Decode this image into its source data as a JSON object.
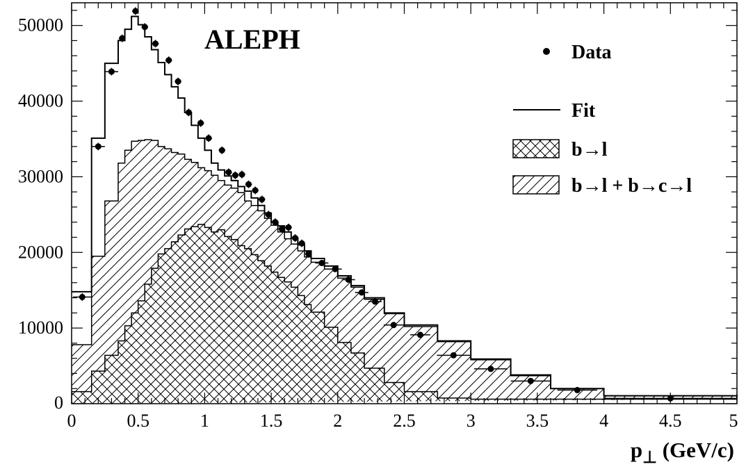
{
  "chart_data": {
    "type": "histogram",
    "experiment_label": "ALEPH",
    "xlabel": "p",
    "xlabel_subscript": "⊥",
    "xlabel_unit": " (GeV/c)",
    "xlim": [
      0,
      5
    ],
    "ylim": [
      0,
      53000
    ],
    "x_ticks": [
      "0",
      "0.5",
      "1",
      "1.5",
      "2",
      "2.5",
      "3",
      "3.5",
      "4",
      "4.5",
      "5"
    ],
    "y_ticks": [
      "0",
      "10000",
      "20000",
      "30000",
      "40000",
      "50000"
    ],
    "bin_edges": [
      0,
      0.15,
      0.25,
      0.35,
      0.4,
      0.45,
      0.5,
      0.55,
      0.6,
      0.65,
      0.7,
      0.75,
      0.8,
      0.85,
      0.9,
      0.95,
      1,
      1.05,
      1.1,
      1.15,
      1.2,
      1.25,
      1.3,
      1.35,
      1.4,
      1.45,
      1.5,
      1.55,
      1.6,
      1.65,
      1.7,
      1.75,
      1.8,
      1.9,
      2,
      2.1,
      2.2,
      2.35,
      2.5,
      2.75,
      3,
      3.3,
      3.6,
      4,
      5
    ],
    "series": [
      {
        "name": "Fit",
        "style": "line",
        "values": [
          14800,
          35100,
          45000,
          48000,
          49500,
          51200,
          50100,
          48500,
          46800,
          45100,
          43500,
          41900,
          40400,
          38500,
          36800,
          35100,
          33500,
          31800,
          30900,
          30100,
          29500,
          28700,
          28100,
          27200,
          26200,
          25200,
          24000,
          23500,
          22700,
          21900,
          21000,
          20200,
          19200,
          18200,
          16900,
          15600,
          14000,
          12000,
          10400,
          8300,
          5900,
          3800,
          2000,
          1050,
          780
        ]
      },
      {
        "name": "b→l + b→c→l",
        "style": "single-hatch",
        "values": [
          7800,
          19500,
          26800,
          31800,
          33500,
          34700,
          34800,
          34900,
          34800,
          34000,
          33700,
          33200,
          33000,
          32300,
          31900,
          31200,
          30800,
          30200,
          29500,
          28900,
          28500,
          27900,
          26800,
          26200,
          25500,
          24500,
          23600,
          22700,
          21800,
          21100,
          20200,
          19400,
          18700,
          17800,
          16600,
          15400,
          13800,
          11900,
          10200,
          8200,
          5800,
          3700,
          2000,
          1050,
          750
        ]
      },
      {
        "name": "b→l",
        "style": "cross-hatch",
        "values": [
          1600,
          4300,
          6400,
          8300,
          10300,
          12000,
          13600,
          15800,
          17900,
          19800,
          20500,
          21400,
          22300,
          23100,
          23400,
          23700,
          23300,
          22700,
          23000,
          22100,
          21700,
          20900,
          20500,
          19700,
          18900,
          18200,
          17400,
          16700,
          16100,
          15400,
          14300,
          13100,
          12100,
          10100,
          8100,
          6700,
          4700,
          2800,
          1600,
          750,
          600,
          600,
          600,
          600,
          600
        ]
      }
    ],
    "data_points": {
      "name": "Data",
      "x": [
        0.08,
        0.2,
        0.3,
        0.38,
        0.48,
        0.55,
        0.63,
        0.73,
        0.8,
        0.88,
        0.97,
        1.03,
        1.13,
        1.18,
        1.23,
        1.28,
        1.33,
        1.38,
        1.43,
        1.48,
        1.53,
        1.58,
        1.63,
        1.68,
        1.73,
        1.78,
        1.88,
        1.98,
        2.08,
        2.18,
        2.28,
        2.42,
        2.62,
        2.87,
        3.15,
        3.45,
        3.8,
        4.5
      ],
      "y": [
        14100,
        34000,
        43900,
        48300,
        51900,
        49800,
        47600,
        45400,
        42600,
        38500,
        37100,
        35100,
        33500,
        30600,
        30200,
        30300,
        29000,
        28200,
        27000,
        25000,
        24000,
        23100,
        23300,
        21900,
        21200,
        19800,
        18600,
        17800,
        16400,
        14700,
        13500,
        10400,
        9100,
        6400,
        4600,
        3000,
        1800,
        700
      ],
      "xerr": [
        0.07,
        0.05,
        0.05,
        0.025,
        0.025,
        0.025,
        0.025,
        0.025,
        0.025,
        0.025,
        0.025,
        0.025,
        0.025,
        0.025,
        0.025,
        0.025,
        0.025,
        0.025,
        0.025,
        0.025,
        0.025,
        0.025,
        0.025,
        0.025,
        0.025,
        0.025,
        0.05,
        0.05,
        0.05,
        0.05,
        0.05,
        0.075,
        0.075,
        0.125,
        0.125,
        0.15,
        0.15,
        0.5
      ],
      "yerr": [
        500,
        500,
        500,
        500,
        500,
        500,
        500,
        500,
        500,
        500,
        500,
        500,
        500,
        500,
        500,
        500,
        500,
        500,
        500,
        500,
        500,
        500,
        500,
        500,
        500,
        500,
        400,
        400,
        400,
        400,
        400,
        300,
        300,
        300,
        250,
        250,
        200,
        150
      ]
    },
    "legend": [
      {
        "label": "Data",
        "marker": "dot"
      },
      {
        "label": "Fit",
        "marker": "line"
      },
      {
        "label": "b→l",
        "marker": "cross-hatch"
      },
      {
        "label": "b→l + b→c→l",
        "marker": "single-hatch"
      }
    ],
    "legend_position": "top-right",
    "grid": false
  }
}
